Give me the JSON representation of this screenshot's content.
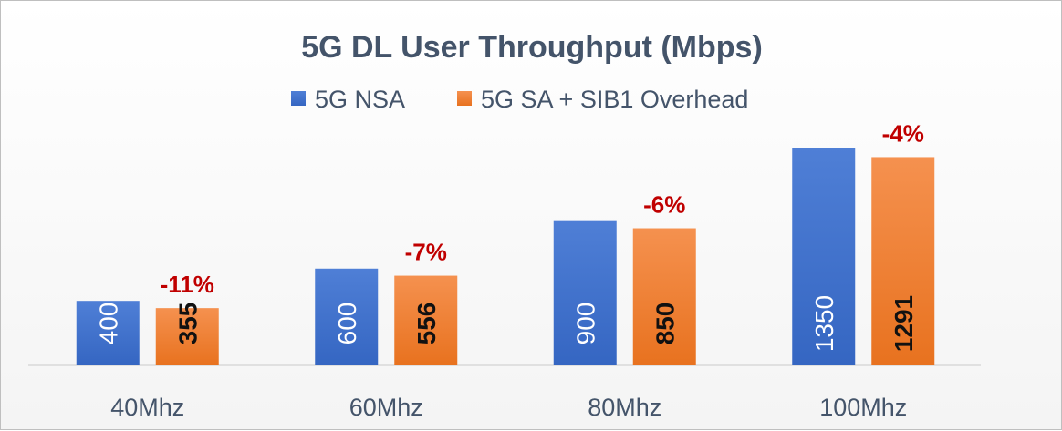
{
  "chart_data": {
    "type": "bar",
    "title": "5G DL User Throughput (Mbps)",
    "xlabel": "",
    "ylabel": "",
    "categories": [
      "40Mhz",
      "60Mhz",
      "80Mhz",
      "100Mhz"
    ],
    "series": [
      {
        "name": "5G NSA",
        "values": [
          400,
          600,
          900,
          1350
        ],
        "color": "#4472c4"
      },
      {
        "name": "5G SA + SIB1 Overhead",
        "values": [
          355,
          556,
          850,
          1291
        ],
        "color": "#ed7d31"
      }
    ],
    "annotations": [
      "-11%",
      "-7%",
      "-6%",
      "-4%"
    ],
    "ylim": [
      0,
      1350
    ],
    "grid": false,
    "legend": "top"
  }
}
